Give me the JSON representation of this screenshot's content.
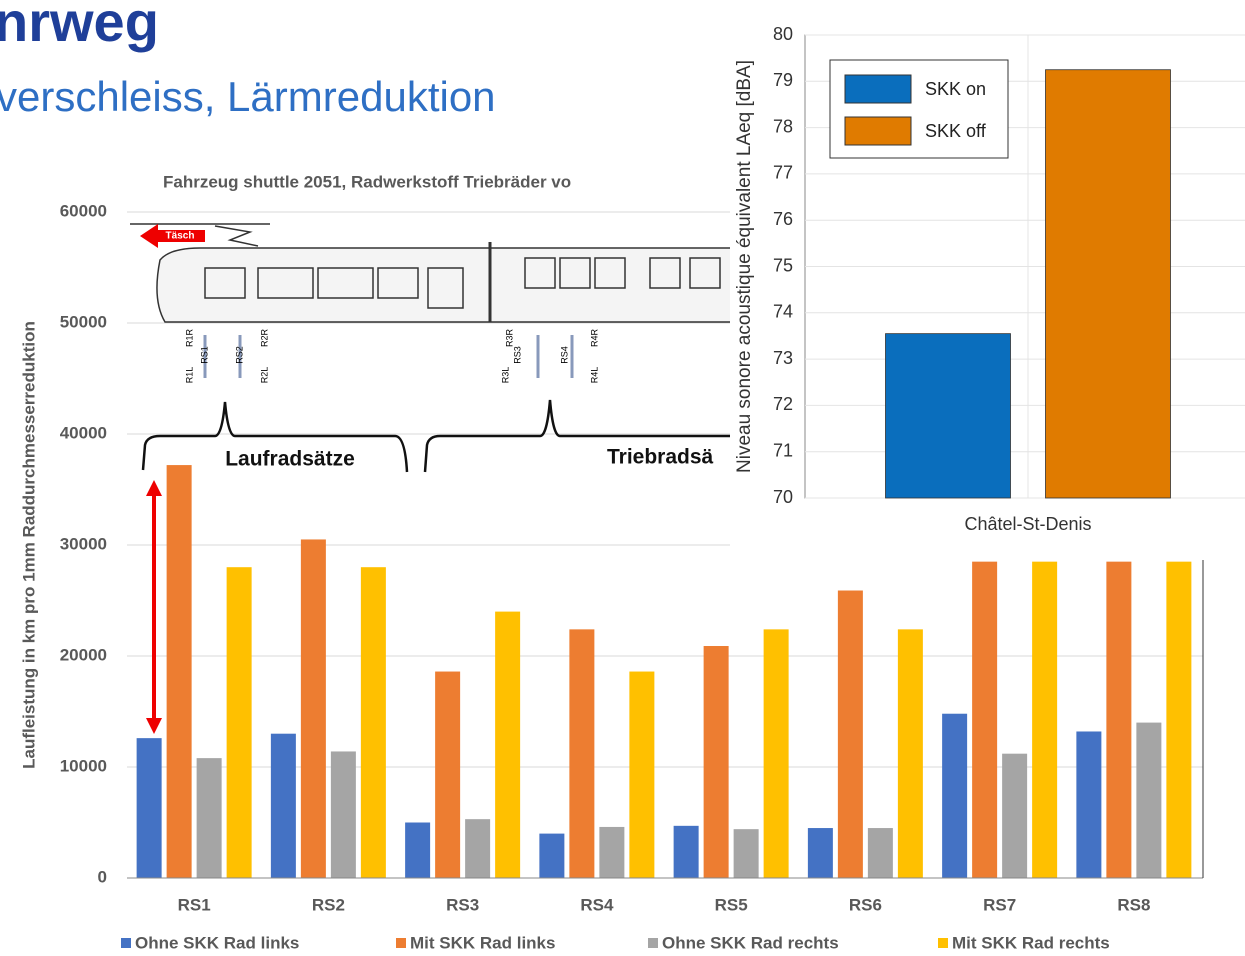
{
  "slide": {
    "title": "nrweg",
    "subtitle": "verschleiss, Lärmreduktion"
  },
  "annotations": {
    "left_group": "Laufradsätze",
    "right_group": "Triebradsä",
    "direction": "Täsch",
    "wheelsets": [
      "R1R",
      "RS1",
      "R1L",
      "RS2",
      "R2R",
      "R2L",
      "R3R",
      "RS3",
      "R3L",
      "RS4",
      "R4R",
      "R4L"
    ]
  },
  "chart_data": [
    {
      "type": "bar",
      "title": "Fahrzeug shuttle 2051, Radwerkstoff Triebräder vo",
      "ylabel": "Laufleistung in km pro 1mm Raddurchmesserreduktion",
      "categories": [
        "RS1",
        "RS2",
        "RS3",
        "RS4",
        "RS5",
        "RS6",
        "RS7",
        "RS8"
      ],
      "series": [
        {
          "name": "Ohne SKK Rad links",
          "color": "#4472c4",
          "values": [
            12600,
            13000,
            5000,
            4000,
            4700,
            4500,
            14800,
            13200
          ]
        },
        {
          "name": "Mit SKK Rad links",
          "color": "#ed7d31",
          "values": [
            37200,
            30500,
            18600,
            22400,
            20900,
            25900,
            28500,
            28500
          ]
        },
        {
          "name": "Ohne SKK Rad rechts",
          "color": "#a5a5a5",
          "values": [
            10800,
            11400,
            5300,
            4600,
            4400,
            4500,
            11200,
            14000
          ]
        },
        {
          "name": "Mit SKK Rad rechts",
          "color": "#ffc000",
          "values": [
            28000,
            28000,
            24000,
            18600,
            22400,
            22400,
            28500,
            28500
          ]
        }
      ],
      "ylim": [
        0,
        60000
      ],
      "yticks": [
        0,
        10000,
        20000,
        30000,
        40000,
        50000,
        60000
      ],
      "grid": true,
      "legend": "bottom"
    },
    {
      "type": "bar",
      "ylabel": "Niveau sonore acoustique équivalent LAeq [dBA]",
      "categories": [
        "Châtel-St-Denis"
      ],
      "series": [
        {
          "name": "SKK on",
          "color": "#0a6ebd",
          "values": [
            73.55
          ]
        },
        {
          "name": "SKK off",
          "color": "#e07b00",
          "values": [
            79.25
          ]
        }
      ],
      "ylim": [
        70,
        80
      ],
      "yticks": [
        70,
        71,
        72,
        73,
        74,
        75,
        76,
        77,
        78,
        79,
        80
      ],
      "grid": true,
      "legend": "upper left"
    }
  ]
}
